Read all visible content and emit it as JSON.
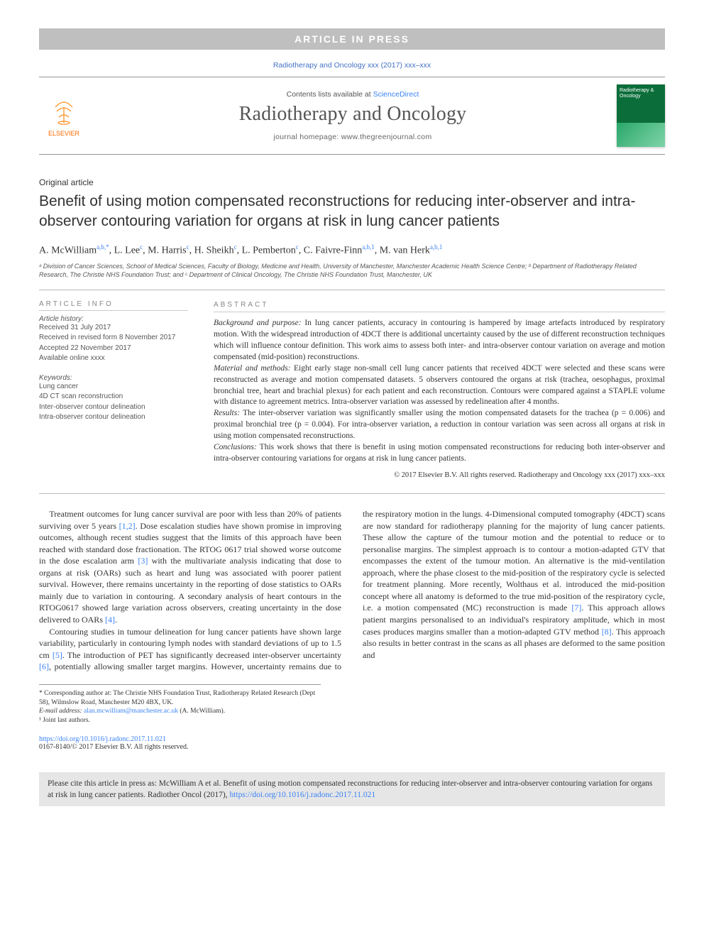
{
  "banner": {
    "text": "ARTICLE IN PRESS"
  },
  "journal_ref": "Radiotherapy and Oncology xxx (2017) xxx–xxx",
  "masthead": {
    "contents_prefix": "Contents lists available at ",
    "contents_link": "ScienceDirect",
    "journal_title": "Radiotherapy and Oncology",
    "homepage": "journal homepage: www.thegreenjournal.com",
    "publisher": "ELSEVIER",
    "cover_title": "Radiotherapy & Oncology"
  },
  "article_type": "Original article",
  "title": "Benefit of using motion compensated reconstructions for reducing inter-observer and intra-observer contouring variation for organs at risk in lung cancer patients",
  "authors_html": "A. McWilliam<sup>a,b,*</sup>, L. Lee<sup>c</sup>, M. Harris<sup>c</sup>, H. Sheikh<sup>c</sup>, L. Pemberton<sup>c</sup>, C. Faivre-Finn<sup>a,b,1</sup>, M. van Herk<sup>a,b,1</sup>",
  "affiliations": "ᵃ Division of Cancer Sciences, School of Medical Sciences, Faculty of Biology, Medicine and Health, University of Manchester, Manchester Academic Health Science Centre; ᵇ Department of Radiotherapy Related Research, The Christie NHS Foundation Trust; and ᶜ Department of Clinical Oncology, The Christie NHS Foundation Trust, Manchester, UK",
  "info": {
    "heading": "ARTICLE INFO",
    "history_label": "Article history:",
    "history": [
      "Received 31 July 2017",
      "Received in revised form 8 November 2017",
      "Accepted 22 November 2017",
      "Available online xxxx"
    ],
    "kw_label": "Keywords:",
    "keywords": [
      "Lung cancer",
      "4D CT scan reconstruction",
      "Inter-observer contour delineation",
      "Intra-observer contour delineation"
    ]
  },
  "abstract": {
    "heading": "ABSTRACT",
    "bg_label": "Background and purpose:",
    "bg_text": " In lung cancer patients, accuracy in contouring is hampered by image artefacts introduced by respiratory motion. With the widespread introduction of 4DCT there is additional uncertainty caused by the use of different reconstruction techniques which will influence contour definition. This work aims to assess both inter- and intra-observer contour variation on average and motion compensated (mid-position) reconstructions.",
    "mm_label": "Material and methods:",
    "mm_text": " Eight early stage non-small cell lung cancer patients that received 4DCT were selected and these scans were reconstructed as average and motion compensated datasets. 5 observers contoured the organs at risk (trachea, oesophagus, proximal bronchial tree, heart and brachial plexus) for each patient and each reconstruction. Contours were compared against a STAPLE volume with distance to agreement metrics. Intra-observer variation was assessed by redelineation after 4 months.",
    "res_label": "Results:",
    "res_text": " The inter-observer variation was significantly smaller using the motion compensated datasets for the trachea (p = 0.006) and proximal bronchial tree (p = 0.004). For intra-observer variation, a reduction in contour variation was seen across all organs at risk in using motion compensated reconstructions.",
    "con_label": "Conclusions:",
    "con_text": " This work shows that there is benefit in using motion compensated reconstructions for reducing both inter-observer and intra-observer contouring variations for organs at risk in lung cancer patients.",
    "copyright": "© 2017 Elsevier B.V. All rights reserved. Radiotherapy and Oncology xxx (2017) xxx–xxx"
  },
  "body": {
    "p1a": "Treatment outcomes for lung cancer survival are poor with less than 20% of patients surviving over 5 years ",
    "c1": "[1,2]",
    "p1b": ". Dose escalation studies have shown promise in improving outcomes, although recent studies suggest that the limits of this approach have been reached with standard dose fractionation. The RTOG 0617 trial showed worse outcome in the dose escalation arm ",
    "c2": "[3]",
    "p1c": " with the multivariate analysis indicating that dose to organs at risk (OARs) such as heart and lung was associated with poorer patient survival. However, there remains uncertainty in the reporting of dose statistics to OARs mainly due to variation in contouring. A secondary analysis of heart contours in the RTOG0617 showed large variation across observers, creating uncertainty in the dose delivered to OARs ",
    "c3": "[4]",
    "p1d": ".",
    "p2a": "Contouring studies in tumour delineation for lung cancer patients have shown large variability, particularly in contouring lymph nodes with standard deviations of up to 1.5 cm ",
    "c4": "[5]",
    "p2b": ". The introduction of PET has significantly decreased inter-observer uncertainty ",
    "c5": "[6]",
    "p2c": ", potentially allowing smaller target margins. However, uncertainty remains due to the respiratory motion in the lungs. 4-Dimensional computed tomography (4DCT) scans are now standard for radiotherapy planning for the majority of lung cancer patients. These allow the capture of the tumour motion and the potential to reduce or to personalise margins. The simplest approach is to contour a motion-adapted GTV that encompasses the extent of the tumour motion. An alternative is the mid-ventilation approach, where the phase closest to the mid-position of the respiratory cycle is selected for treatment planning. More recently, Wolthaus et al. introduced the mid-position concept where all anatomy is deformed to the true mid-position of the respiratory cycle, i.e. a motion compensated (MC) reconstruction is made ",
    "c6": "[7]",
    "p2d": ". This approach allows patient margins personalised to an individual's respiratory amplitude, which in most cases produces margins smaller than a motion-adapted GTV method ",
    "c7": "[8]",
    "p2e": ". This approach also results in better contrast in the scans as all phases are deformed to the same position and"
  },
  "footnotes": {
    "corr": "* Corresponding author at: The Christie NHS Foundation Trust, Radiotherapy Related Research (Dept 58), Wilmslow Road, Manchester M20 4BX, UK.",
    "email_label": "E-mail address: ",
    "email": "alan.mcwilliam@manchester.ac.uk",
    "email_author": " (A. McWilliam).",
    "joint": "¹ Joint last authors."
  },
  "doi": {
    "url": "https://doi.org/10.1016/j.radonc.2017.11.021",
    "rights": "0167-8140/© 2017 Elsevier B.V. All rights reserved."
  },
  "citebox": {
    "text": "Please cite this article in press as: McWilliam A et al. Benefit of using motion compensated reconstructions for reducing inter-observer and intra-observer contouring variation for organs at risk in lung cancer patients. Radiother Oncol (2017), ",
    "link": "https://doi.org/10.1016/j.radonc.2017.11.021"
  }
}
